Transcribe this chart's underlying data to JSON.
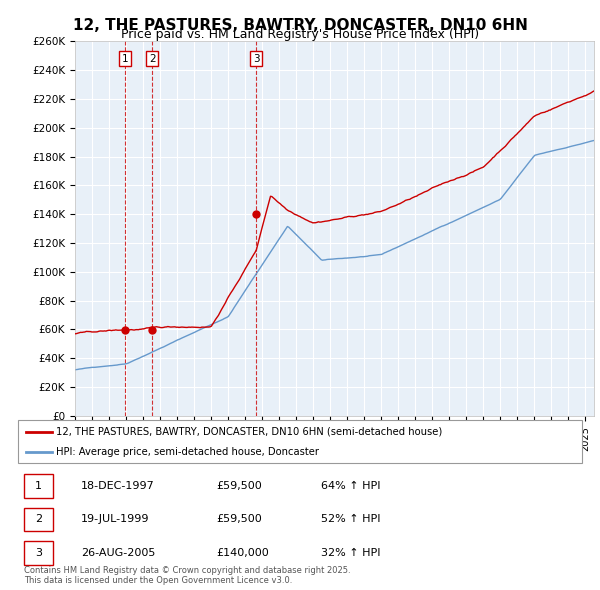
{
  "title": "12, THE PASTURES, BAWTRY, DONCASTER, DN10 6HN",
  "subtitle": "Price paid vs. HM Land Registry's House Price Index (HPI)",
  "title_fontsize": 11,
  "subtitle_fontsize": 9,
  "ylabel_ticks": [
    "£0",
    "£20K",
    "£40K",
    "£60K",
    "£80K",
    "£100K",
    "£120K",
    "£140K",
    "£160K",
    "£180K",
    "£200K",
    "£220K",
    "£240K",
    "£260K"
  ],
  "ylim": [
    0,
    260000
  ],
  "yticks": [
    0,
    20000,
    40000,
    60000,
    80000,
    100000,
    120000,
    140000,
    160000,
    180000,
    200000,
    220000,
    240000,
    260000
  ],
  "xlim_start": 1995.0,
  "xlim_end": 2025.5,
  "sale_dates": [
    1997.96,
    1999.54,
    2005.65
  ],
  "sale_prices": [
    59500,
    59500,
    140000
  ],
  "sale_labels": [
    "1",
    "2",
    "3"
  ],
  "legend_line1": "12, THE PASTURES, BAWTRY, DONCASTER, DN10 6HN (semi-detached house)",
  "legend_line2": "HPI: Average price, semi-detached house, Doncaster",
  "table_rows": [
    [
      "1",
      "18-DEC-1997",
      "£59,500",
      "64% ↑ HPI"
    ],
    [
      "2",
      "19-JUL-1999",
      "£59,500",
      "52% ↑ HPI"
    ],
    [
      "3",
      "26-AUG-2005",
      "£140,000",
      "32% ↑ HPI"
    ]
  ],
  "footer": "Contains HM Land Registry data © Crown copyright and database right 2025.\nThis data is licensed under the Open Government Licence v3.0.",
  "red_color": "#cc0000",
  "blue_color": "#6699cc",
  "bg_color": "#ffffff",
  "plot_bg_color": "#e8f0f8",
  "grid_color": "#ffffff"
}
